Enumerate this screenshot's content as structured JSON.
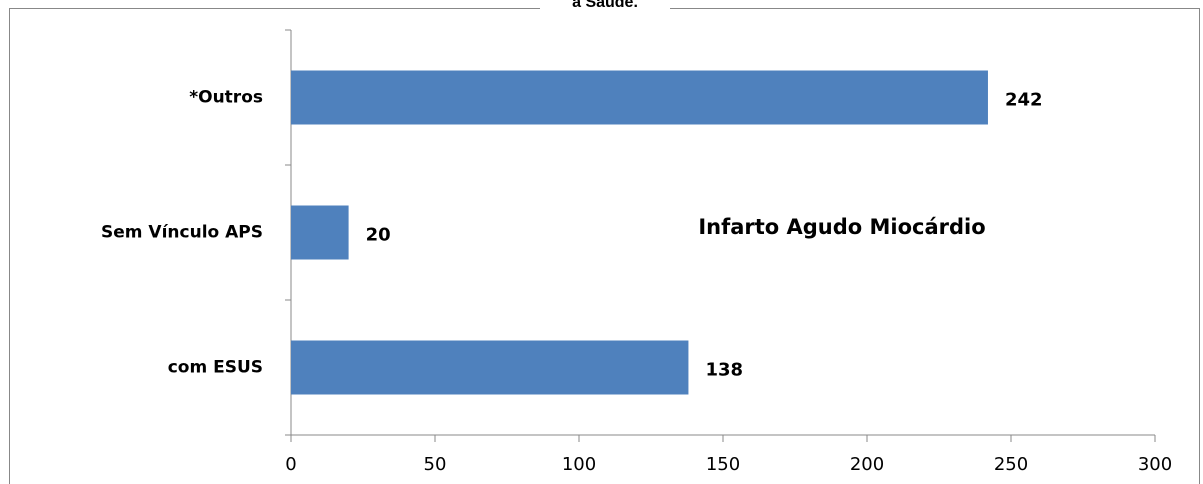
{
  "chart_data": {
    "type": "barh",
    "title": "a Saúde.",
    "annotation": "Infarto Agudo Miocárdio",
    "categories": [
      "*Outros",
      "Sem Vínculo APS",
      "com ESUS"
    ],
    "values": [
      242,
      20,
      138
    ],
    "color": "#4f81bd",
    "xlim": [
      0,
      300
    ],
    "xticks": [
      0,
      50,
      100,
      150,
      200,
      250,
      300
    ],
    "grid": false
  }
}
